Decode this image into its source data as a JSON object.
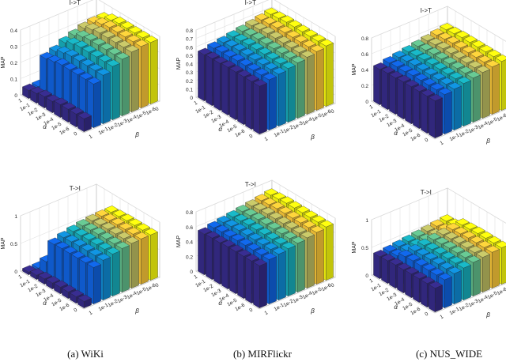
{
  "captions": [
    "(a) WiKi",
    "(b) MIRFlickr",
    "(c) NUS_WIDE"
  ],
  "chart_data": [
    {
      "type": "bar3d",
      "title": "I->T",
      "zlabel": "MAP",
      "xlabel": "α",
      "ylabel": "β",
      "alpha_ticks": [
        "1",
        "1e-1",
        "1e-2",
        "1e-3",
        "1e-4",
        "1e-5",
        "1e-6",
        "0"
      ],
      "beta_ticks": [
        "1",
        "1e-1",
        "1e-2",
        "1e-3",
        "1e-4",
        "1e-5",
        "1e-6",
        "0"
      ],
      "zlim": [
        0,
        0.4
      ],
      "zticks": [
        "0",
        "0.1",
        "0.2",
        "0.3",
        "0.4"
      ],
      "values": [
        [
          0.05,
          0.05,
          0.05,
          0.05,
          0.05,
          0.05,
          0.05,
          0.05
        ],
        [
          0.06,
          0.25,
          0.27,
          0.3,
          0.32,
          0.34,
          0.35,
          0.35
        ],
        [
          0.07,
          0.26,
          0.29,
          0.32,
          0.34,
          0.36,
          0.37,
          0.37
        ],
        [
          0.07,
          0.27,
          0.3,
          0.33,
          0.35,
          0.37,
          0.38,
          0.38
        ],
        [
          0.08,
          0.27,
          0.3,
          0.33,
          0.35,
          0.37,
          0.38,
          0.38
        ],
        [
          0.08,
          0.27,
          0.3,
          0.33,
          0.35,
          0.37,
          0.38,
          0.38
        ],
        [
          0.08,
          0.27,
          0.3,
          0.33,
          0.35,
          0.37,
          0.38,
          0.38
        ],
        [
          0.08,
          0.27,
          0.3,
          0.33,
          0.35,
          0.37,
          0.38,
          0.38
        ]
      ]
    },
    {
      "type": "bar3d",
      "title": "I->T",
      "zlabel": "MAP",
      "xlabel": "α",
      "ylabel": "β",
      "alpha_ticks": [
        "1",
        "1e-1",
        "1e-2",
        "1e-3",
        "1e-4",
        "1e-5",
        "1e-6",
        "0"
      ],
      "beta_ticks": [
        "1",
        "1e-1",
        "1e-2",
        "1e-3",
        "1e-4",
        "1e-5",
        "1e-6",
        "0"
      ],
      "zlim": [
        0,
        0.8
      ],
      "zticks": [
        "0",
        "0.1",
        "0.2",
        "0.3",
        "0.4",
        "0.5",
        "0.6",
        "0.7",
        "0.8"
      ],
      "values": [
        [
          0.55,
          0.58,
          0.6,
          0.62,
          0.64,
          0.66,
          0.68,
          0.7
        ],
        [
          0.56,
          0.59,
          0.61,
          0.63,
          0.65,
          0.67,
          0.69,
          0.71
        ],
        [
          0.56,
          0.59,
          0.62,
          0.64,
          0.66,
          0.68,
          0.7,
          0.72
        ],
        [
          0.57,
          0.6,
          0.62,
          0.64,
          0.66,
          0.68,
          0.7,
          0.72
        ],
        [
          0.57,
          0.6,
          0.62,
          0.64,
          0.66,
          0.68,
          0.7,
          0.72
        ],
        [
          0.57,
          0.6,
          0.62,
          0.64,
          0.66,
          0.68,
          0.7,
          0.72
        ],
        [
          0.57,
          0.6,
          0.62,
          0.64,
          0.66,
          0.68,
          0.7,
          0.72
        ],
        [
          0.57,
          0.6,
          0.62,
          0.64,
          0.66,
          0.68,
          0.7,
          0.72
        ]
      ]
    },
    {
      "type": "bar3d",
      "title": "I->T",
      "zlabel": "MAP",
      "xlabel": "α",
      "ylabel": "β",
      "alpha_ticks": [
        "1",
        "1e-1",
        "1e-2",
        "1e-3",
        "1e-4",
        "1e-5",
        "1e-6",
        "0"
      ],
      "beta_ticks": [
        "1",
        "1e-1",
        "1e-2",
        "1e-3",
        "1e-4",
        "1e-5",
        "1e-6",
        "0"
      ],
      "zlim": [
        0,
        0.8
      ],
      "zticks": [
        "0",
        "0.2",
        "0.4",
        "0.6",
        "0.8"
      ],
      "values": [
        [
          0.45,
          0.48,
          0.5,
          0.52,
          0.54,
          0.56,
          0.58,
          0.6
        ],
        [
          0.46,
          0.49,
          0.51,
          0.53,
          0.55,
          0.57,
          0.59,
          0.61
        ],
        [
          0.46,
          0.49,
          0.52,
          0.54,
          0.56,
          0.58,
          0.6,
          0.62
        ],
        [
          0.47,
          0.5,
          0.52,
          0.54,
          0.56,
          0.58,
          0.6,
          0.62
        ],
        [
          0.47,
          0.5,
          0.52,
          0.54,
          0.56,
          0.58,
          0.6,
          0.62
        ],
        [
          0.47,
          0.5,
          0.52,
          0.54,
          0.56,
          0.58,
          0.6,
          0.62
        ],
        [
          0.47,
          0.5,
          0.52,
          0.54,
          0.56,
          0.58,
          0.6,
          0.62
        ],
        [
          0.47,
          0.5,
          0.52,
          0.54,
          0.56,
          0.58,
          0.6,
          0.62
        ]
      ]
    },
    {
      "type": "bar3d",
      "title": "T->I",
      "zlabel": "MAP",
      "xlabel": "α",
      "ylabel": "β",
      "alpha_ticks": [
        "1",
        "1e-1",
        "1e-2",
        "1e-3",
        "1e-4",
        "1e-5",
        "1e-6",
        "0"
      ],
      "beta_ticks": [
        "1",
        "1e-1",
        "1e-2",
        "1e-3",
        "1e-4",
        "1e-5",
        "1e-6",
        "0"
      ],
      "zlim": [
        0,
        1
      ],
      "zticks": [
        "0",
        "0.5",
        "1"
      ],
      "values": [
        [
          0.05,
          0.05,
          0.05,
          0.05,
          0.05,
          0.05,
          0.05,
          0.05
        ],
        [
          0.08,
          0.25,
          0.3,
          0.33,
          0.35,
          0.36,
          0.37,
          0.37
        ],
        [
          0.1,
          0.65,
          0.7,
          0.74,
          0.77,
          0.79,
          0.8,
          0.8
        ],
        [
          0.11,
          0.66,
          0.71,
          0.75,
          0.78,
          0.8,
          0.81,
          0.81
        ],
        [
          0.12,
          0.66,
          0.72,
          0.76,
          0.79,
          0.81,
          0.82,
          0.82
        ],
        [
          0.12,
          0.66,
          0.72,
          0.76,
          0.79,
          0.81,
          0.82,
          0.82
        ],
        [
          0.12,
          0.66,
          0.72,
          0.76,
          0.79,
          0.81,
          0.82,
          0.82
        ],
        [
          0.12,
          0.66,
          0.72,
          0.76,
          0.79,
          0.81,
          0.82,
          0.82
        ]
      ]
    },
    {
      "type": "bar3d",
      "title": "T->I",
      "zlabel": "MAP",
      "xlabel": "α",
      "ylabel": "β",
      "alpha_ticks": [
        "1",
        "1e-1",
        "1e-2",
        "1e-3",
        "1e-4",
        "1e-5",
        "1e-6",
        "0"
      ],
      "beta_ticks": [
        "1",
        "1e-1",
        "1e-2",
        "1e-3",
        "1e-4",
        "1e-5",
        "1e-6",
        "0"
      ],
      "zlim": [
        0,
        0.8
      ],
      "zticks": [
        "0",
        "0.2",
        "0.4",
        "0.6",
        "0.8"
      ],
      "values": [
        [
          0.55,
          0.58,
          0.6,
          0.62,
          0.64,
          0.66,
          0.68,
          0.7
        ],
        [
          0.56,
          0.59,
          0.61,
          0.63,
          0.65,
          0.67,
          0.69,
          0.71
        ],
        [
          0.56,
          0.59,
          0.62,
          0.64,
          0.66,
          0.68,
          0.7,
          0.72
        ],
        [
          0.57,
          0.6,
          0.62,
          0.64,
          0.66,
          0.68,
          0.7,
          0.72
        ],
        [
          0.57,
          0.6,
          0.62,
          0.64,
          0.66,
          0.68,
          0.7,
          0.72
        ],
        [
          0.57,
          0.6,
          0.62,
          0.64,
          0.66,
          0.68,
          0.7,
          0.72
        ],
        [
          0.57,
          0.6,
          0.62,
          0.64,
          0.66,
          0.68,
          0.7,
          0.72
        ],
        [
          0.57,
          0.6,
          0.62,
          0.64,
          0.66,
          0.68,
          0.7,
          0.72
        ]
      ]
    },
    {
      "type": "bar3d",
      "title": "T->I",
      "zlabel": "MAP",
      "xlabel": "α",
      "ylabel": "β",
      "alpha_ticks": [
        "1",
        "1e-1",
        "1e-2",
        "1e-3",
        "1e-4",
        "1e-5",
        "1e-6",
        "0"
      ],
      "beta_ticks": [
        "1",
        "1e-1",
        "1e-2",
        "1e-3",
        "1e-4",
        "1e-5",
        "1e-6",
        "0"
      ],
      "zlim": [
        0,
        1
      ],
      "zticks": [
        "0",
        "0.5",
        "1"
      ],
      "values": [
        [
          0.4,
          0.42,
          0.44,
          0.46,
          0.48,
          0.5,
          0.52,
          0.54
        ],
        [
          0.41,
          0.43,
          0.45,
          0.47,
          0.49,
          0.51,
          0.53,
          0.55
        ],
        [
          0.42,
          0.5,
          0.53,
          0.56,
          0.59,
          0.61,
          0.63,
          0.64
        ],
        [
          0.42,
          0.51,
          0.54,
          0.57,
          0.6,
          0.62,
          0.64,
          0.65
        ],
        [
          0.43,
          0.51,
          0.55,
          0.58,
          0.61,
          0.63,
          0.65,
          0.66
        ],
        [
          0.43,
          0.51,
          0.55,
          0.58,
          0.61,
          0.63,
          0.65,
          0.66
        ],
        [
          0.43,
          0.51,
          0.55,
          0.58,
          0.61,
          0.63,
          0.65,
          0.66
        ],
        [
          0.43,
          0.51,
          0.55,
          0.58,
          0.61,
          0.63,
          0.65,
          0.66
        ]
      ]
    }
  ]
}
